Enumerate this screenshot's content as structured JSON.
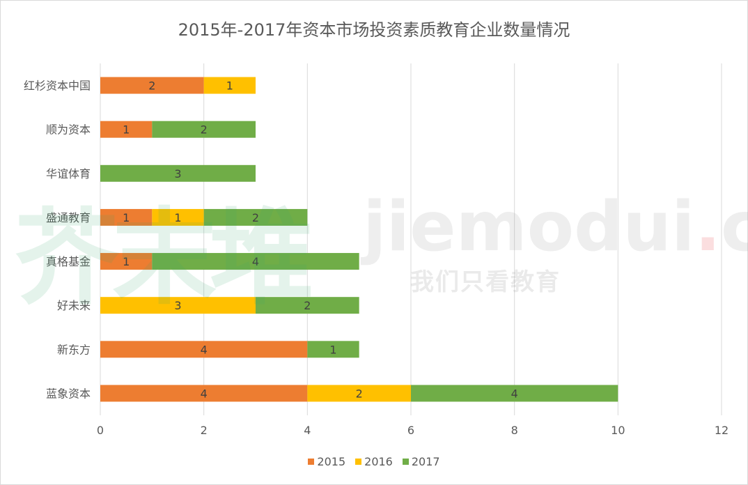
{
  "chart_data": {
    "type": "bar",
    "orientation": "horizontal",
    "stacked": true,
    "title": "2015年-2017年资本市场投资素质教育企业数量情况",
    "categories": [
      "红杉资本中国",
      "顺为资本",
      "华谊体育",
      "盛通教育",
      "真格基金",
      "好未来",
      "新东方",
      "蓝象资本"
    ],
    "series": [
      {
        "name": "2015",
        "color": "#ed7d31",
        "values": [
          2,
          1,
          0,
          1,
          1,
          0,
          4,
          4
        ]
      },
      {
        "name": "2016",
        "color": "#ffc000",
        "values": [
          1,
          0,
          0,
          1,
          0,
          3,
          0,
          2
        ]
      },
      {
        "name": "2017",
        "color": "#70ad47",
        "values": [
          0,
          2,
          3,
          2,
          4,
          2,
          1,
          4
        ]
      }
    ],
    "xlim": [
      0,
      12
    ],
    "xticks": [
      0,
      2,
      4,
      6,
      8,
      10,
      12
    ],
    "grid": true,
    "legend_position": "bottom"
  },
  "watermark": {
    "cn": "芥末堆",
    "en_main": "jiemodui",
    "en_dot": ".",
    "en_tld": "com",
    "slogan": "我们只看教育"
  }
}
